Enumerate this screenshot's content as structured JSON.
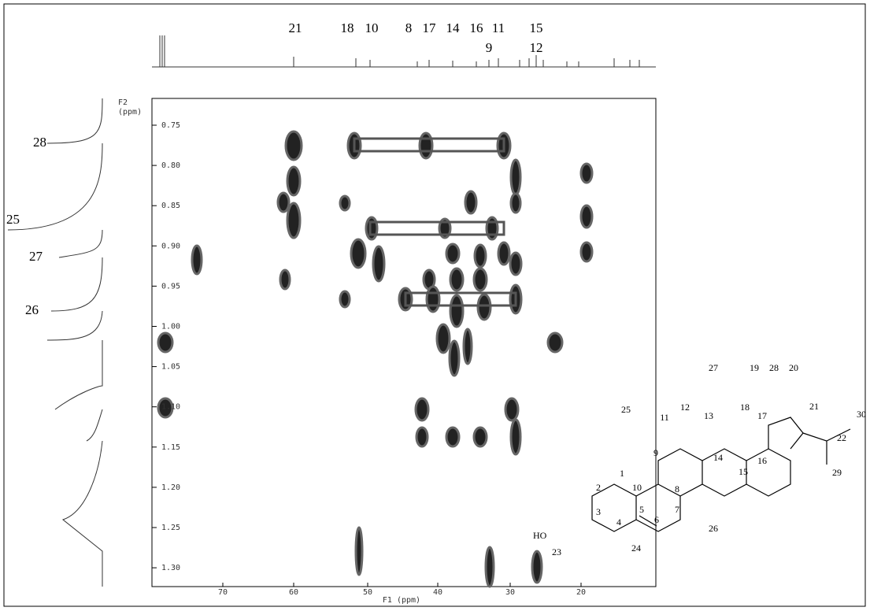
{
  "spectrum": {
    "f1_label": "F1 (ppm)",
    "f2_label": [
      "F2",
      "(ppm)"
    ],
    "x_ticks": [
      "70",
      "60",
      "50",
      "40",
      "30",
      "20"
    ],
    "y_ticks": [
      "0.75",
      "0.80",
      "0.85",
      "0.90",
      "0.95",
      "1.00",
      "1.05",
      "1.10",
      "1.15",
      "1.20",
      "1.25",
      "1.30"
    ],
    "top_labels_row1": [
      "21",
      "18",
      "10",
      "8",
      "17",
      "14",
      "16",
      "11",
      "15"
    ],
    "top_labels_row2": [
      "9",
      "12"
    ],
    "left_labels": [
      "28",
      "25",
      "27",
      "26"
    ]
  },
  "structure": {
    "atom_labels": [
      "27",
      "19",
      "28",
      "20",
      "21",
      "30",
      "22",
      "29",
      "12",
      "13",
      "18",
      "17",
      "11",
      "25",
      "14",
      "16",
      "15",
      "9",
      "10",
      "8",
      "1",
      "2",
      "3",
      "5",
      "6",
      "7",
      "4",
      "26",
      "23",
      "24"
    ],
    "hydroxyl": "HO"
  }
}
